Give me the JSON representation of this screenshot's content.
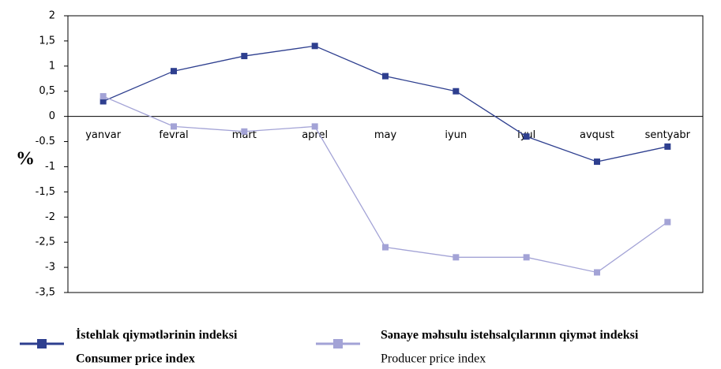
{
  "chart_data": {
    "type": "line",
    "y_label": "%",
    "categories": [
      "yanvar",
      "fevral",
      "mart",
      "aprel",
      "may",
      "iyun",
      "iyul",
      "avqust",
      "sentyabr"
    ],
    "series": [
      {
        "name": "İstehlak qiymətlərinin indeksi",
        "name_en": "Consumer price index",
        "color": "#2e3f8f",
        "values": [
          0.3,
          0.9,
          1.2,
          1.4,
          0.8,
          0.5,
          -0.4,
          -0.9,
          -0.6
        ]
      },
      {
        "name": "Sənaye məhsulu istehsalçılarının qiymət indeksi",
        "name_en": "Producer price index",
        "color": "#a3a3d6",
        "values": [
          0.4,
          -0.2,
          -0.3,
          -0.2,
          -2.6,
          -2.8,
          -2.8,
          -3.1,
          -2.1
        ]
      }
    ],
    "ylim": [
      -3.5,
      2
    ],
    "yticks": [
      2,
      {
        "value": 1.5,
        "label": "1,5"
      },
      1,
      {
        "value": 0.5,
        "label": "0,5"
      },
      0,
      -0.5,
      -1,
      {
        "value": -1.5,
        "label": "-1,5"
      },
      -2,
      {
        "value": -2.5,
        "label": "-2,5"
      },
      -3,
      {
        "value": -3.5,
        "label": "-3,5"
      }
    ],
    "grid": false
  }
}
